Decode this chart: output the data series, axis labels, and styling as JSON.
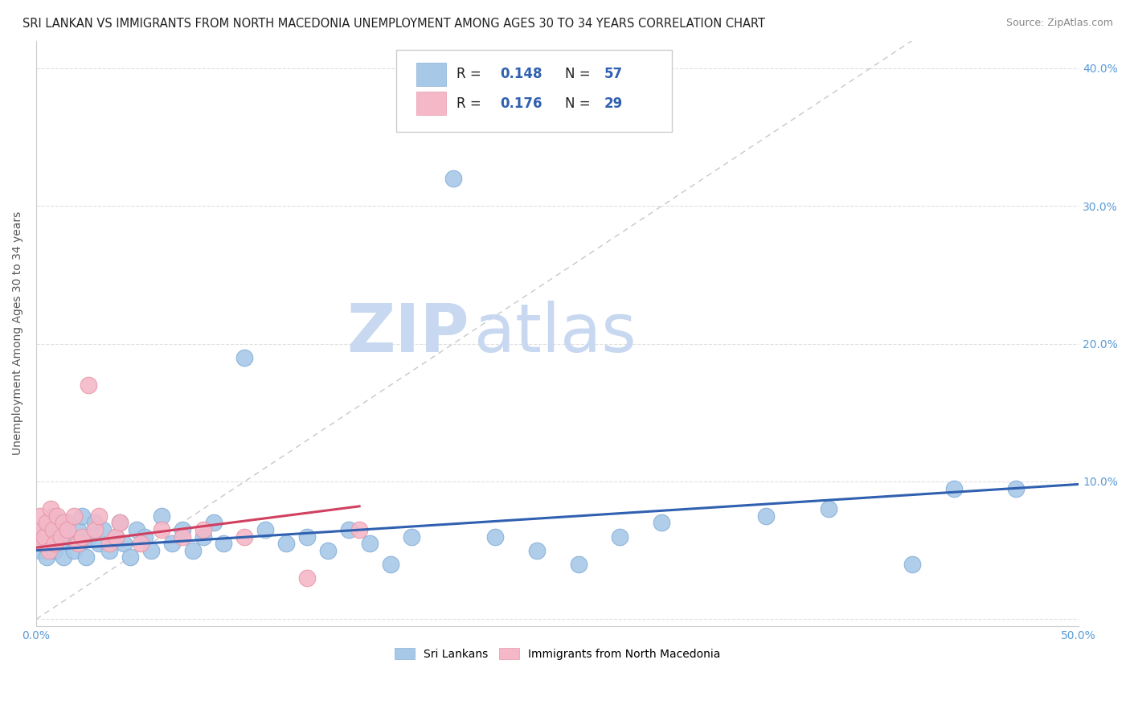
{
  "title": "SRI LANKAN VS IMMIGRANTS FROM NORTH MACEDONIA UNEMPLOYMENT AMONG AGES 30 TO 34 YEARS CORRELATION CHART",
  "source": "Source: ZipAtlas.com",
  "ylabel": "Unemployment Among Ages 30 to 34 years",
  "xlim": [
    0.0,
    0.5
  ],
  "ylim": [
    -0.005,
    0.42
  ],
  "xtick_vals": [
    0.0,
    0.1,
    0.2,
    0.3,
    0.4,
    0.5
  ],
  "xticklabels": [
    "0.0%",
    "",
    "",
    "",
    "",
    "50.0%"
  ],
  "ytick_vals": [
    0.0,
    0.1,
    0.2,
    0.3,
    0.4
  ],
  "yticklabels_right": [
    "",
    "10.0%",
    "20.0%",
    "30.0%",
    "40.0%"
  ],
  "legend_r1": "0.148",
  "legend_n1": "57",
  "legend_r2": "0.176",
  "legend_n2": "29",
  "series1_color": "#a8c8e8",
  "series2_color": "#f4b8c8",
  "series1_edge": "#88b0d8",
  "series2_edge": "#e898a8",
  "line1_color": "#3060b0",
  "line2_color": "#d04060",
  "diag_color": "#c8c8c8",
  "grid_color": "#e0e0e0",
  "watermark_zip_color": "#c8d8f0",
  "watermark_atlas_color": "#c8d8f0",
  "background_color": "#ffffff",
  "tick_color": "#5b9bd5",
  "axis_label_color": "#555555",
  "title_color": "#222222",
  "source_color": "#888888",
  "legend_text_color": "#222222",
  "legend_value_color": "#3060b0",
  "sri_x": [
    0.002,
    0.003,
    0.004,
    0.005,
    0.006,
    0.007,
    0.008,
    0.009,
    0.01,
    0.012,
    0.013,
    0.015,
    0.016,
    0.018,
    0.02,
    0.021,
    0.022,
    0.024,
    0.026,
    0.028,
    0.03,
    0.032,
    0.035,
    0.038,
    0.04,
    0.042,
    0.045,
    0.048,
    0.052,
    0.055,
    0.06,
    0.065,
    0.07,
    0.075,
    0.08,
    0.085,
    0.09,
    0.1,
    0.11,
    0.12,
    0.13,
    0.14,
    0.15,
    0.16,
    0.17,
    0.18,
    0.2,
    0.22,
    0.24,
    0.26,
    0.28,
    0.3,
    0.35,
    0.38,
    0.42,
    0.44,
    0.47
  ],
  "sri_y": [
    0.05,
    0.065,
    0.055,
    0.045,
    0.07,
    0.06,
    0.075,
    0.05,
    0.065,
    0.055,
    0.045,
    0.07,
    0.06,
    0.05,
    0.065,
    0.055,
    0.075,
    0.045,
    0.06,
    0.07,
    0.055,
    0.065,
    0.05,
    0.06,
    0.07,
    0.055,
    0.045,
    0.065,
    0.06,
    0.05,
    0.075,
    0.055,
    0.065,
    0.05,
    0.06,
    0.07,
    0.055,
    0.19,
    0.065,
    0.055,
    0.06,
    0.05,
    0.065,
    0.055,
    0.04,
    0.06,
    0.32,
    0.06,
    0.05,
    0.04,
    0.06,
    0.07,
    0.075,
    0.08,
    0.04,
    0.095,
    0.095
  ],
  "mac_x": [
    0.001,
    0.002,
    0.003,
    0.004,
    0.005,
    0.006,
    0.007,
    0.008,
    0.009,
    0.01,
    0.012,
    0.013,
    0.015,
    0.018,
    0.02,
    0.022,
    0.025,
    0.028,
    0.03,
    0.035,
    0.038,
    0.04,
    0.05,
    0.06,
    0.07,
    0.08,
    0.1,
    0.13,
    0.155
  ],
  "mac_y": [
    0.065,
    0.075,
    0.055,
    0.06,
    0.07,
    0.05,
    0.08,
    0.065,
    0.055,
    0.075,
    0.06,
    0.07,
    0.065,
    0.075,
    0.055,
    0.06,
    0.17,
    0.065,
    0.075,
    0.055,
    0.06,
    0.07,
    0.055,
    0.065,
    0.06,
    0.065,
    0.06,
    0.03,
    0.065
  ],
  "trend1_x": [
    0.0,
    0.5
  ],
  "trend1_y": [
    0.05,
    0.098
  ],
  "trend2_x": [
    0.0,
    0.155
  ],
  "trend2_y": [
    0.052,
    0.082
  ]
}
